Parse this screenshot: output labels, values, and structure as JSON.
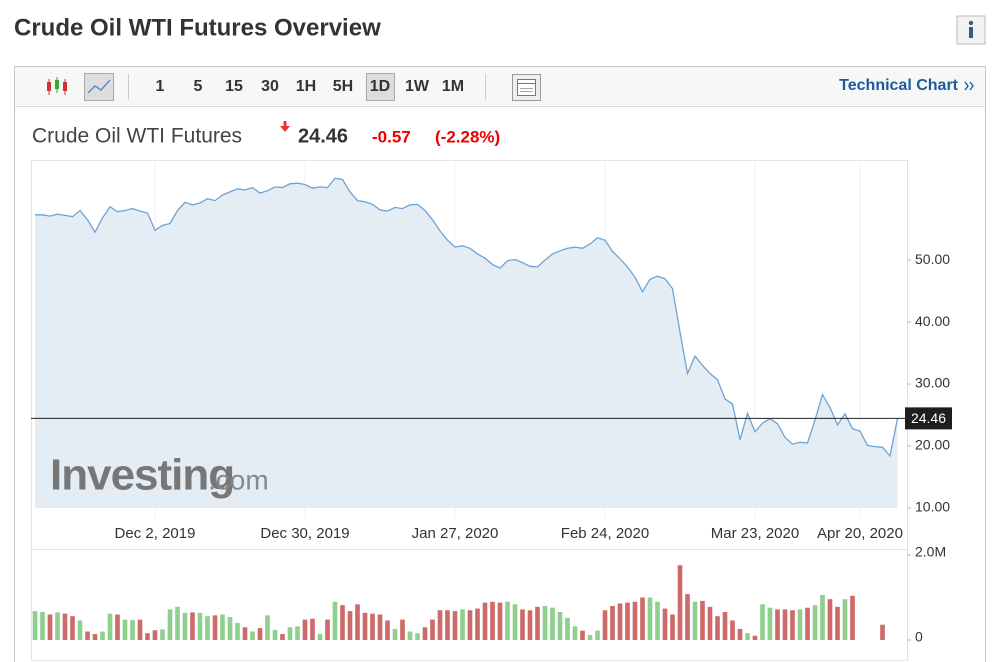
{
  "header": {
    "title": "Crude Oil WTI Futures Overview"
  },
  "toolbar": {
    "intervals": [
      "1",
      "5",
      "15",
      "30",
      "1H",
      "5H",
      "1D",
      "1W",
      "1M"
    ],
    "link": "Technical Chart"
  },
  "quote": {
    "name": "Crude Oil WTI Futures",
    "price": 24.46,
    "change": -0.57,
    "change_percent": {
      "value": -2.28,
      "label": "(-2.28%)"
    }
  },
  "watermark": {
    "brand": "Investing",
    "suffix": ".com"
  },
  "chart_data": [
    {
      "type": "line",
      "color": "#6fa3d6",
      "fill": "#e4edf3",
      "categories": [
        null,
        null,
        null,
        null,
        null,
        null,
        null,
        null,
        null,
        null,
        null,
        null,
        null,
        null,
        null,
        null,
        "Dec 2, 2019",
        null,
        null,
        null,
        null,
        null,
        null,
        null,
        null,
        null,
        null,
        null,
        null,
        null,
        null,
        null,
        null,
        null,
        null,
        null,
        "Dec 30, 2019",
        null,
        null,
        null,
        null,
        null,
        null,
        null,
        null,
        null,
        null,
        null,
        null,
        null,
        null,
        null,
        null,
        null,
        null,
        null,
        "Jan 27, 2020",
        null,
        null,
        null,
        null,
        null,
        null,
        null,
        null,
        null,
        null,
        null,
        null,
        null,
        null,
        null,
        null,
        null,
        null,
        null,
        "Feb 24, 2020",
        null,
        null,
        null,
        null,
        null,
        null,
        null,
        null,
        null,
        null,
        null,
        null,
        null,
        null,
        null,
        null,
        null,
        null,
        null,
        "Mar 23, 2020",
        null,
        null,
        null,
        null,
        null,
        null,
        null,
        null,
        null,
        null,
        null,
        null,
        null,
        "Apr 20, 2020",
        null,
        null,
        null,
        null,
        null
      ],
      "values": [
        57.3,
        57.3,
        57.1,
        57.4,
        57.2,
        57.0,
        58.0,
        56.5,
        54.5,
        56.8,
        58.6,
        57.8,
        58.0,
        58.3,
        57.9,
        57.6,
        54.8,
        55.6,
        55.9,
        58.0,
        59.3,
        58.9,
        59.2,
        59.9,
        59.6,
        60.5,
        61.0,
        61.5,
        61.3,
        61.7,
        60.8,
        61.2,
        61.8,
        61.7,
        62.3,
        62.4,
        62.2,
        61.6,
        61.8,
        61.7,
        63.2,
        63.0,
        61.0,
        59.6,
        59.4,
        59.0,
        58.1,
        57.9,
        58.5,
        58.3,
        58.9,
        59.0,
        58.0,
        56.5,
        54.7,
        53.2,
        52.1,
        52.3,
        51.9,
        51.0,
        50.3,
        49.3,
        48.7,
        49.9,
        50.1,
        49.6,
        49.0,
        48.9,
        50.0,
        51.0,
        51.5,
        51.9,
        52.1,
        51.9,
        52.6,
        53.6,
        53.2,
        51.4,
        50.2,
        48.9,
        47.2,
        44.9,
        46.9,
        47.4,
        47.0,
        45.4,
        38.4,
        31.7,
        34.5,
        33.0,
        31.7,
        30.7,
        27.6,
        26.8,
        21.0,
        25.3,
        22.3,
        23.7,
        24.4,
        23.6,
        21.4,
        20.3,
        20.6,
        20.5,
        24.2,
        28.3,
        26.2,
        23.4,
        25.2,
        22.8,
        22.4,
        20.1,
        19.9,
        19.8,
        18.4,
        24.46
      ],
      "ylim": [
        10,
        65.5
      ],
      "yticks": [
        {
          "value": 10,
          "label": "10.00"
        },
        {
          "value": 20,
          "label": "20.00"
        },
        {
          "value": 30,
          "label": "30.00"
        },
        {
          "value": 40,
          "label": "40.00"
        },
        {
          "value": 50,
          "label": "50.00"
        }
      ]
    },
    {
      "type": "bar",
      "up_color": "#8fd08f",
      "down_color": "#cd6b6b",
      "values": [
        680000,
        660000,
        600000,
        650000,
        620000,
        560000,
        460000,
        200000,
        140000,
        200000,
        620000,
        600000,
        480000,
        470000,
        480000,
        160000,
        230000,
        250000,
        720000,
        780000,
        640000,
        650000,
        640000,
        560000,
        580000,
        600000,
        540000,
        400000,
        300000,
        200000,
        280000,
        580000,
        240000,
        140000,
        300000,
        320000,
        480000,
        500000,
        140000,
        480000,
        900000,
        820000,
        680000,
        840000,
        640000,
        620000,
        600000,
        460000,
        260000,
        480000,
        200000,
        160000,
        300000,
        480000,
        700000,
        700000,
        680000,
        720000,
        700000,
        740000,
        880000,
        900000,
        880000,
        900000,
        840000,
        720000,
        700000,
        780000,
        800000,
        760000,
        660000,
        520000,
        320000,
        220000,
        120000,
        220000,
        700000,
        800000,
        860000,
        880000,
        900000,
        1000000,
        1000000,
        900000,
        740000,
        600000,
        1760000,
        1080000,
        900000,
        920000,
        780000,
        560000,
        660000,
        460000,
        260000,
        160000,
        100000,
        840000,
        760000,
        720000,
        720000,
        700000,
        720000,
        760000,
        820000,
        1060000,
        960000,
        780000,
        960000,
        1040000,
        null,
        null,
        null,
        360000,
        null,
        null
      ],
      "ylim": [
        0,
        2000000
      ],
      "yticks": [
        0,
        {
          "value": 2000000,
          "label": "2.0M"
        }
      ]
    }
  ]
}
